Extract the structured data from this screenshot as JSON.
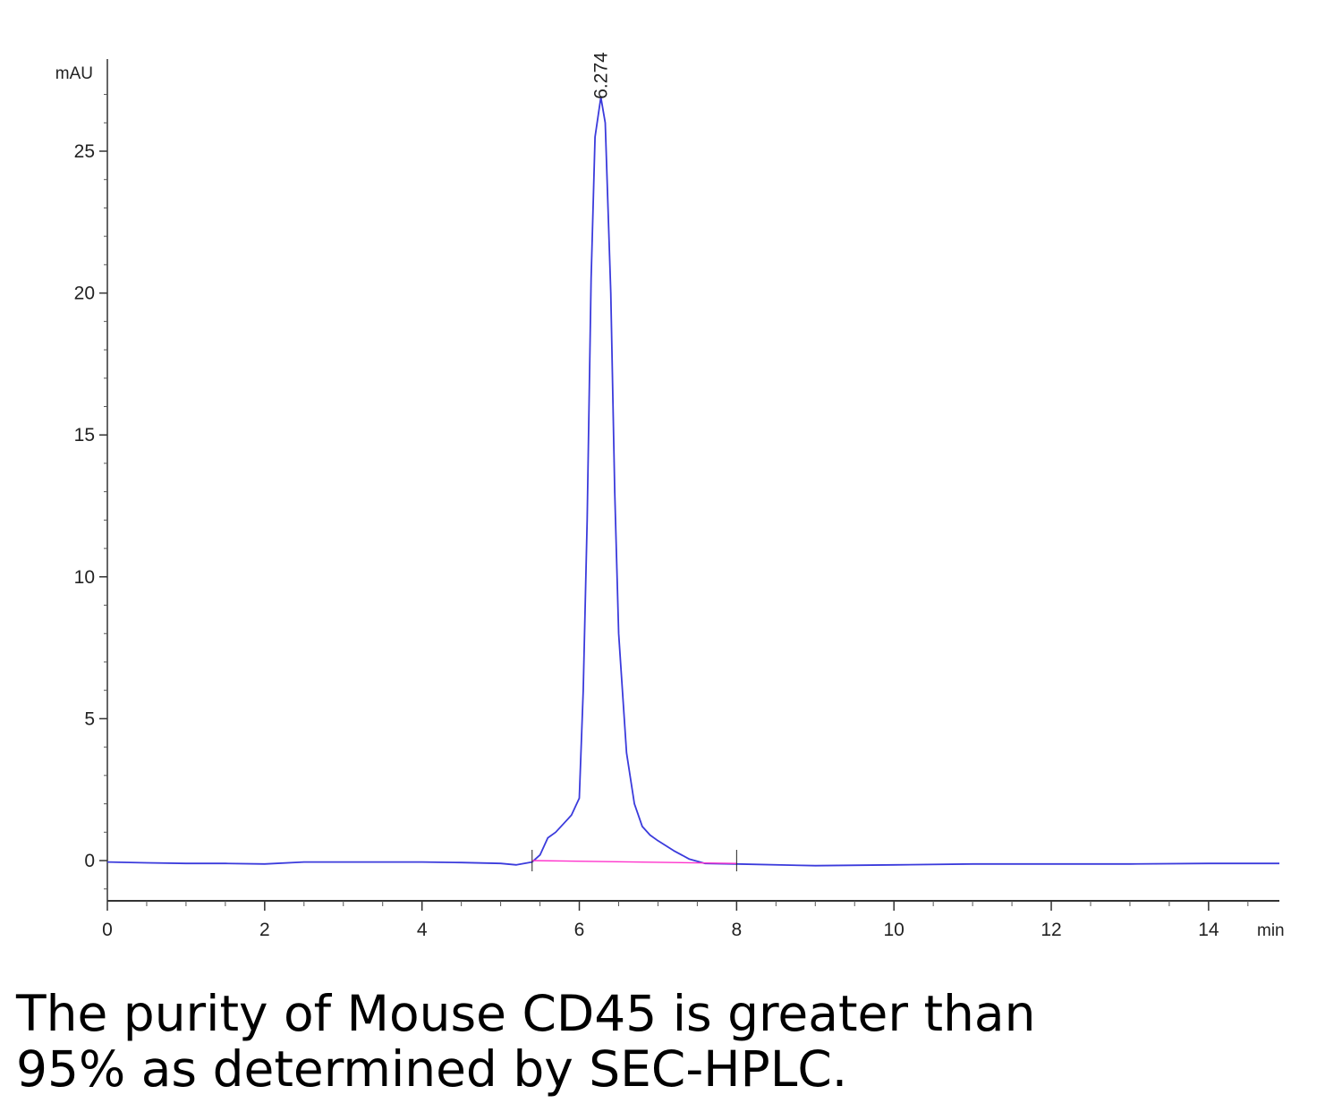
{
  "chart_data": {
    "type": "line",
    "title": "",
    "xlabel": "",
    "ylabel": "",
    "x_unit": "min",
    "y_unit": "mAU",
    "xlim": [
      0,
      14.9
    ],
    "ylim": [
      -1.5,
      28
    ],
    "x_ticks": [
      0,
      2,
      4,
      6,
      8,
      10,
      12,
      14
    ],
    "y_ticks": [
      0,
      5,
      10,
      15,
      20,
      25
    ],
    "grid": false,
    "legend": "none",
    "series": [
      {
        "color": "#3b3bdc",
        "x": [
          0,
          0.5,
          1,
          1.5,
          2,
          2.5,
          3,
          3.5,
          4,
          4.5,
          5,
          5.2,
          5.4,
          5.5,
          5.6,
          5.7,
          5.8,
          5.9,
          6.0,
          6.05,
          6.1,
          6.15,
          6.2,
          6.274,
          6.33,
          6.4,
          6.45,
          6.5,
          6.6,
          6.7,
          6.8,
          6.9,
          7.0,
          7.2,
          7.4,
          7.6,
          8.0,
          9,
          10,
          11,
          12,
          13,
          14,
          14.9
        ],
        "y": [
          -0.05,
          -0.08,
          -0.1,
          -0.1,
          -0.12,
          -0.05,
          -0.05,
          -0.05,
          -0.05,
          -0.07,
          -0.1,
          -0.15,
          -0.05,
          0.2,
          0.8,
          1.0,
          1.3,
          1.6,
          2.2,
          6.0,
          12.0,
          20.5,
          25.5,
          26.9,
          26.0,
          20.0,
          13.0,
          8.0,
          3.8,
          2.0,
          1.2,
          0.9,
          0.7,
          0.35,
          0.05,
          -0.1,
          -0.12,
          -0.18,
          -0.15,
          -0.12,
          -0.12,
          -0.12,
          -0.1,
          -0.1
        ]
      },
      {
        "color": "#ff33cc",
        "x": [
          5.4,
          8.0
        ],
        "y": [
          0.0,
          -0.1
        ]
      }
    ],
    "annotations": [
      {
        "text": "6.274",
        "x": 6.274,
        "y": 26.9
      }
    ]
  },
  "caption": {
    "line1": "The purity of Mouse CD45 is greater than",
    "line2": "95% as determined by SEC-HPLC."
  }
}
